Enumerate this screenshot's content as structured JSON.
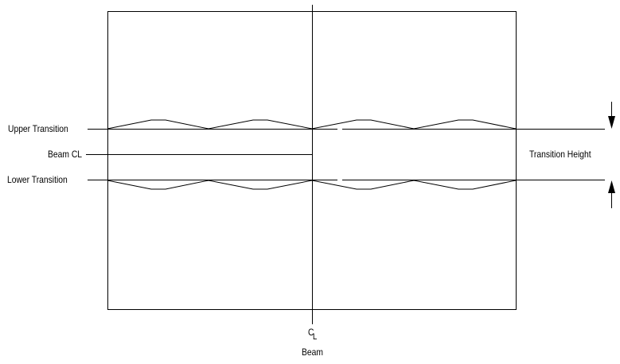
{
  "labels": {
    "upper_transition": "Upper Transition",
    "beam_cl": "Beam CL",
    "lower_transition": "Lower Transition",
    "transition_height": "Transition  Height",
    "centerline_c": "C",
    "centerline_l": "L",
    "beam": "Beam"
  },
  "colors": {
    "line": "#000000",
    "background": "#ffffff"
  }
}
